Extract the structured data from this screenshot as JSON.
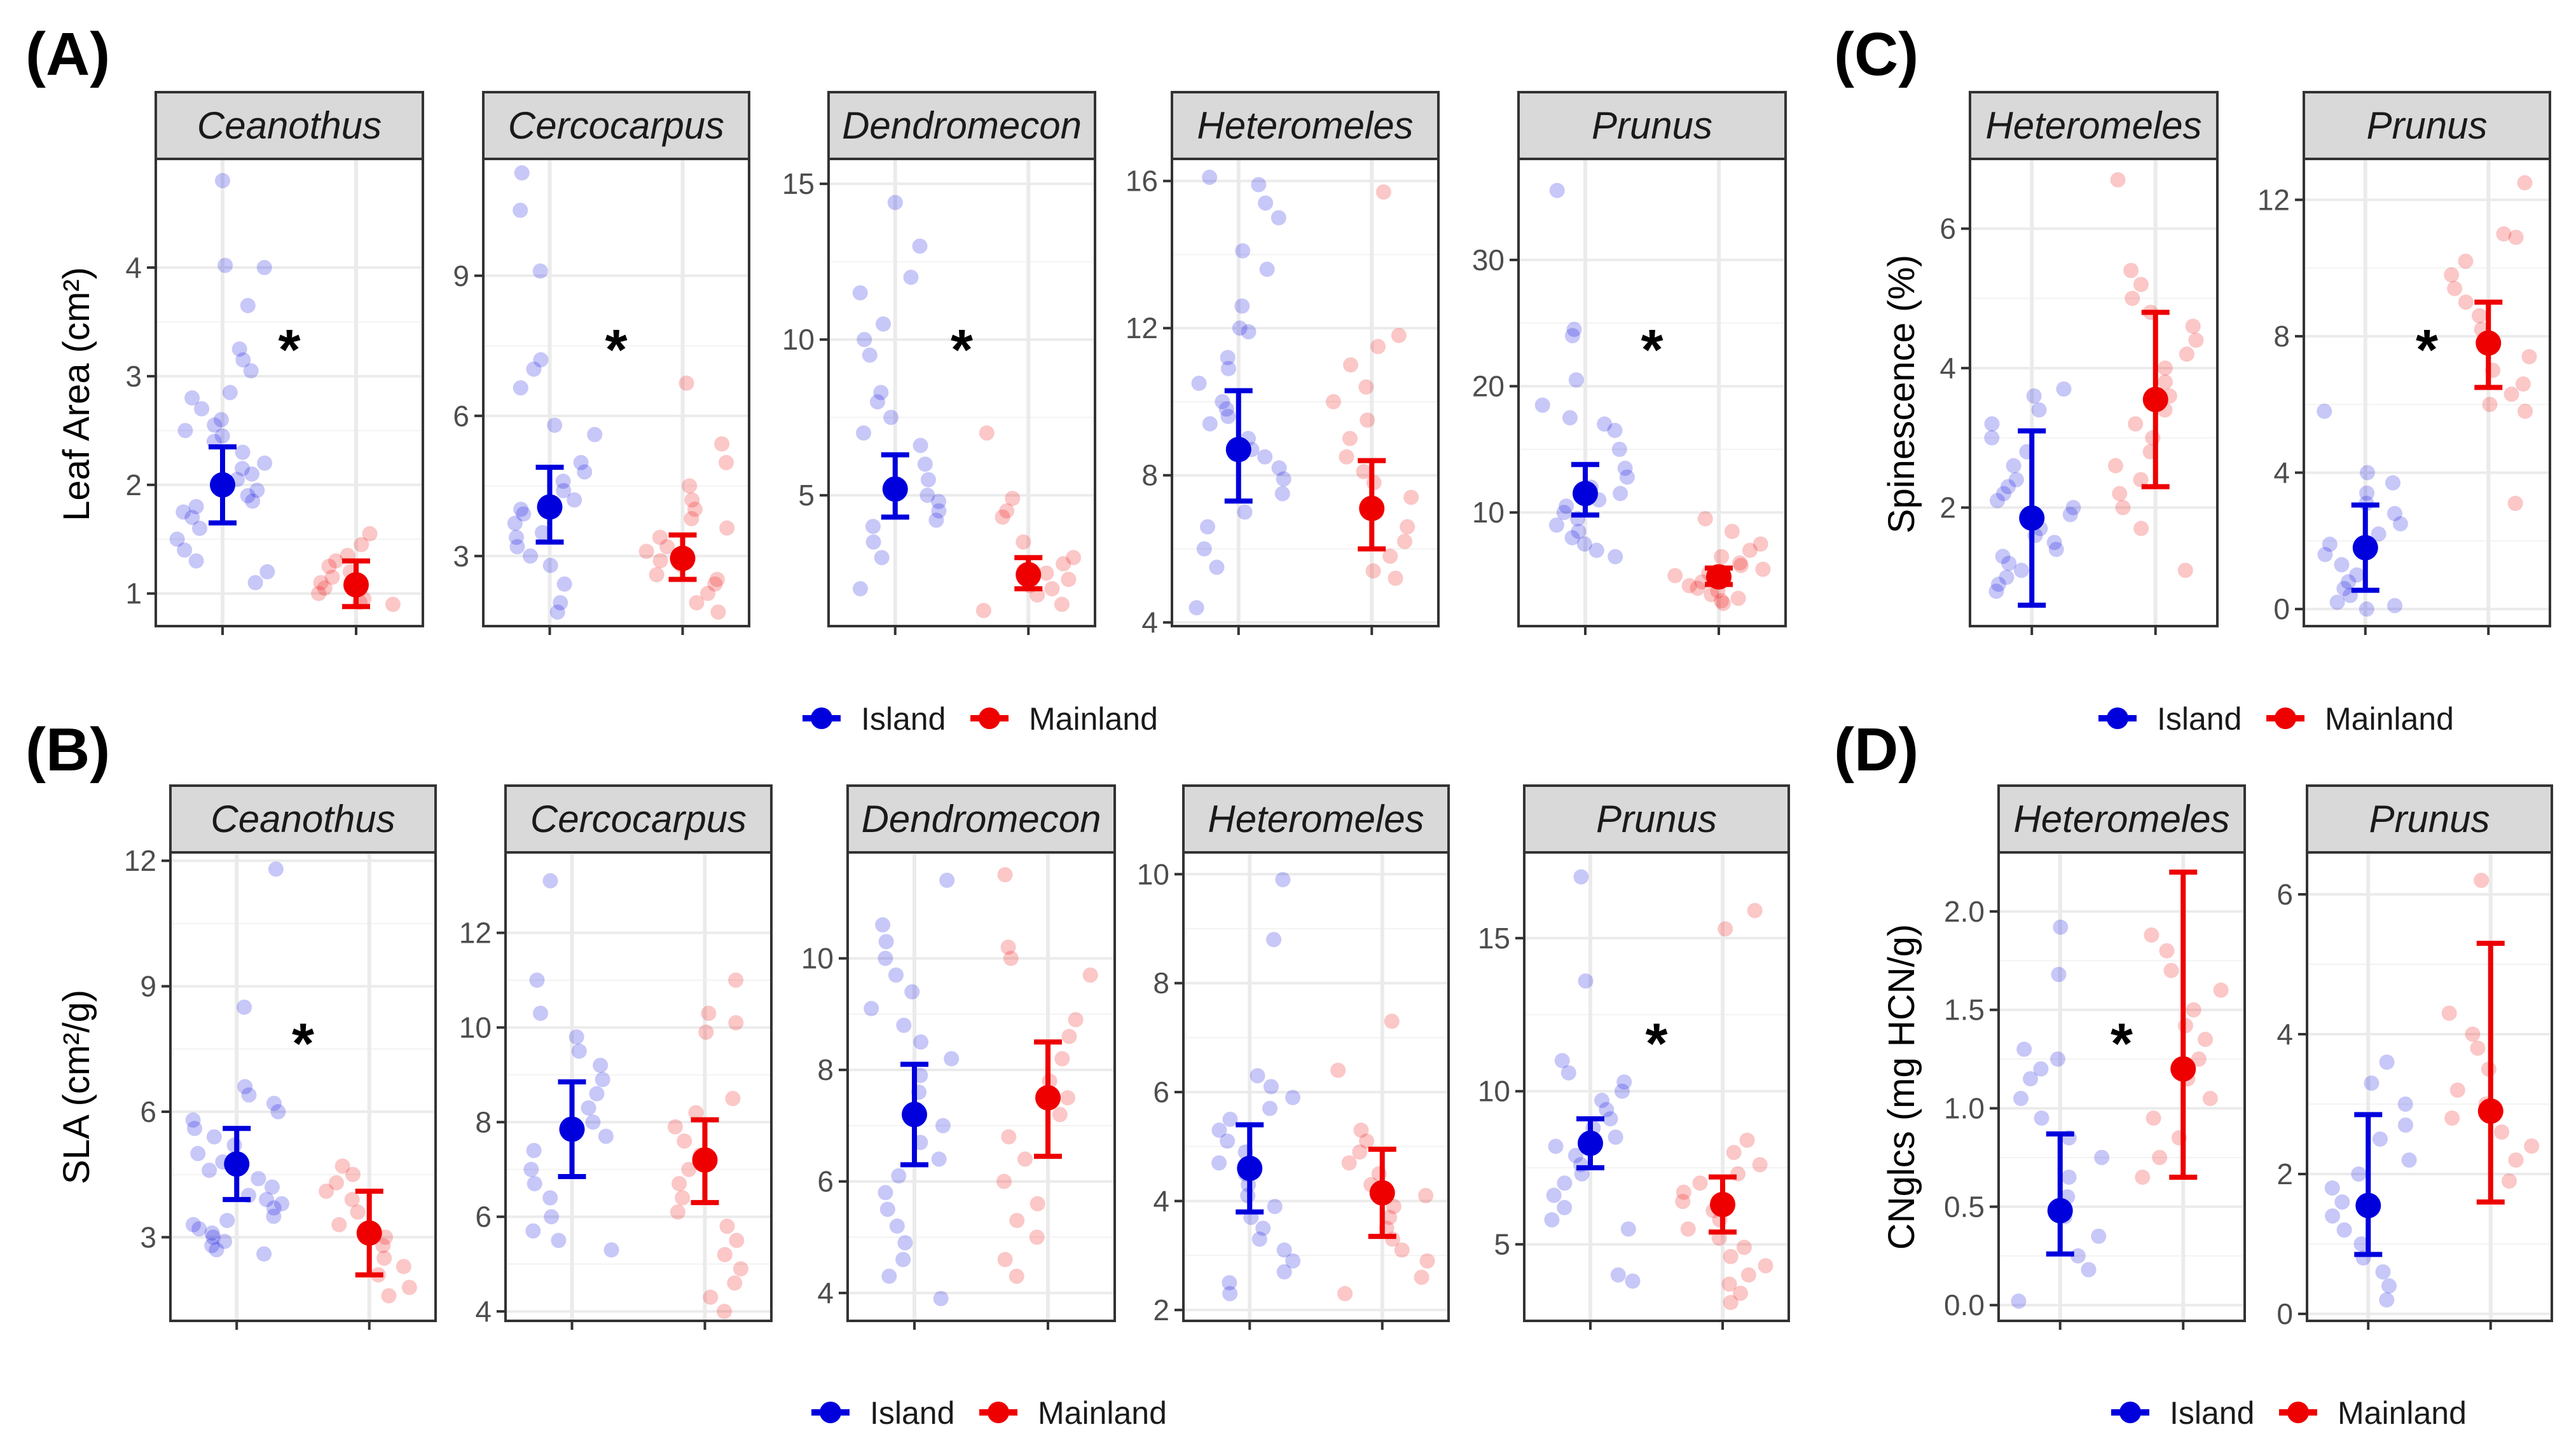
{
  "colors": {
    "island": "#0000dd",
    "mainland": "#ee0000",
    "strip_fill": "#d9d9d9",
    "grid": "#ebebeb"
  },
  "legend": {
    "island": "Island",
    "mainland": "Mainland"
  },
  "chart_data": [
    {
      "id": "A",
      "label": "(A)",
      "type": "scatter",
      "ylabel": "Leaf Area (cm²)",
      "facets": [
        {
          "name": "Ceanothus",
          "ylim": [
            0.7,
            5.0
          ],
          "ticks": [
            1,
            2,
            3,
            4
          ],
          "star": true,
          "island": {
            "mean": 2.0,
            "lo": 1.65,
            "hi": 2.35,
            "points": [
              4.8,
              4.0,
              4.02,
              3.65,
              3.25,
              3.15,
              3.05,
              2.85,
              2.8,
              2.7,
              2.6,
              2.55,
              2.5,
              2.45,
              2.4,
              2.3,
              2.2,
              2.15,
              2.1,
              2.05,
              1.95,
              1.9,
              1.85,
              1.8,
              1.75,
              1.7,
              1.6,
              1.5,
              1.4,
              1.3,
              1.2,
              1.1
            ]
          },
          "mainland": {
            "mean": 1.08,
            "lo": 0.88,
            "hi": 1.3,
            "points": [
              1.55,
              1.45,
              1.35,
              1.3,
              1.25,
              1.2,
              1.15,
              1.1,
              1.05,
              1.0,
              0.95,
              0.92,
              0.9
            ]
          }
        },
        {
          "name": "Cercocarpus",
          "ylim": [
            1.5,
            11.5
          ],
          "ticks": [
            3,
            6,
            9
          ],
          "star": true,
          "island": {
            "mean": 4.05,
            "lo": 3.3,
            "hi": 4.9,
            "points": [
              11.2,
              10.4,
              9.1,
              7.2,
              7.0,
              6.6,
              5.8,
              5.6,
              5.0,
              4.8,
              4.6,
              4.4,
              4.2,
              4.0,
              3.9,
              3.7,
              3.5,
              3.4,
              3.2,
              3.0,
              2.8,
              2.4,
              2.0,
              1.8
            ]
          },
          "mainland": {
            "mean": 2.95,
            "lo": 2.5,
            "hi": 3.45,
            "points": [
              6.7,
              5.4,
              5.0,
              4.5,
              4.2,
              4.0,
              3.8,
              3.6,
              3.4,
              3.2,
              3.1,
              3.0,
              2.9,
              2.8,
              2.6,
              2.5,
              2.4,
              2.2,
              2.0,
              1.8
            ]
          }
        },
        {
          "name": "Dendromecon",
          "ylim": [
            0.8,
            15.8
          ],
          "ticks": [
            5,
            10,
            15
          ],
          "star": true,
          "island": {
            "mean": 5.2,
            "lo": 4.3,
            "hi": 6.3,
            "points": [
              14.4,
              13.0,
              12.0,
              11.5,
              10.5,
              10.0,
              9.5,
              8.3,
              8.0,
              7.5,
              7.0,
              6.6,
              6.0,
              5.5,
              5.0,
              4.8,
              4.5,
              4.2,
              4.0,
              3.5,
              3.0,
              2.0
            ]
          },
          "mainland": {
            "mean": 2.45,
            "lo": 2.0,
            "hi": 3.0,
            "points": [
              7.0,
              4.9,
              4.5,
              4.3,
              3.5,
              3.0,
              2.8,
              2.5,
              2.3,
              2.1,
              2.0,
              1.8,
              1.5,
              1.3
            ]
          }
        },
        {
          "name": "Heteromeles",
          "ylim": [
            3.9,
            16.6
          ],
          "ticks": [
            4,
            8,
            12,
            16
          ],
          "star": false,
          "island": {
            "mean": 8.7,
            "lo": 7.3,
            "hi": 10.3,
            "points": [
              16.1,
              15.9,
              15.4,
              15.0,
              14.1,
              13.6,
              12.6,
              12.0,
              11.9,
              11.2,
              10.9,
              10.5,
              10.0,
              9.8,
              9.6,
              9.4,
              9.0,
              8.7,
              8.5,
              8.2,
              7.9,
              7.5,
              7.0,
              6.6,
              6.0,
              5.5,
              4.4
            ]
          },
          "mainland": {
            "mean": 7.1,
            "lo": 6.0,
            "hi": 8.4,
            "points": [
              15.7,
              11.8,
              11.5,
              11.0,
              10.4,
              10.0,
              9.5,
              9.0,
              8.5,
              8.1,
              7.8,
              7.4,
              7.0,
              6.6,
              6.2,
              5.8,
              5.4,
              5.2
            ]
          }
        },
        {
          "name": "Prunus",
          "ylim": [
            1.0,
            38.0
          ],
          "ticks": [
            10,
            20,
            30
          ],
          "star": true,
          "island": {
            "mean": 11.5,
            "lo": 9.8,
            "hi": 13.8,
            "points": [
              35.5,
              24.5,
              24.0,
              20.5,
              18.5,
              17.5,
              17.0,
              16.5,
              15.0,
              13.5,
              12.8,
              12.0,
              11.5,
              11.0,
              10.5,
              10.0,
              9.5,
              9.0,
              8.5,
              8.0,
              7.5,
              7.0,
              6.5
            ]
          },
          "mainland": {
            "mean": 4.9,
            "lo": 4.3,
            "hi": 5.6,
            "points": [
              9.5,
              8.5,
              7.5,
              7.0,
              6.5,
              6.0,
              5.8,
              5.5,
              5.2,
              5.0,
              4.8,
              4.5,
              4.2,
              4.0,
              3.8,
              3.5,
              3.2,
              3.0,
              2.8
            ]
          }
        }
      ]
    },
    {
      "id": "B",
      "label": "(B)",
      "type": "scatter",
      "ylabel": "SLA (cm²/g)",
      "facets": [
        {
          "name": "Ceanothus",
          "ylim": [
            1.0,
            12.2
          ],
          "ticks": [
            3,
            6,
            9,
            12
          ],
          "star": true,
          "island": {
            "mean": 4.75,
            "lo": 3.9,
            "hi": 5.6,
            "points": [
              11.8,
              8.5,
              6.6,
              6.4,
              6.2,
              6.0,
              5.8,
              5.6,
              5.4,
              5.2,
              5.0,
              4.8,
              4.6,
              4.4,
              4.2,
              4.0,
              3.9,
              3.8,
              3.7,
              3.5,
              3.4,
              3.3,
              3.2,
              3.1,
              3.0,
              2.9,
              2.8,
              2.7,
              2.6
            ]
          },
          "mainland": {
            "mean": 3.1,
            "lo": 2.1,
            "hi": 4.1,
            "points": [
              4.7,
              4.5,
              4.3,
              4.1,
              3.9,
              3.6,
              3.3,
              3.0,
              2.8,
              2.5,
              2.3,
              2.1,
              1.8,
              1.6
            ]
          }
        },
        {
          "name": "Cercocarpus",
          "ylim": [
            3.8,
            13.7
          ],
          "ticks": [
            4,
            6,
            8,
            10,
            12
          ],
          "star": false,
          "island": {
            "mean": 7.85,
            "lo": 6.85,
            "hi": 8.85,
            "points": [
              13.1,
              11.0,
              10.3,
              9.8,
              9.5,
              9.2,
              8.9,
              8.6,
              8.3,
              8.0,
              7.7,
              7.4,
              7.0,
              6.7,
              6.4,
              6.0,
              5.7,
              5.5,
              5.3
            ]
          },
          "mainland": {
            "mean": 7.2,
            "lo": 6.3,
            "hi": 8.05,
            "points": [
              11.0,
              10.3,
              10.1,
              9.9,
              8.5,
              8.2,
              7.9,
              7.6,
              7.3,
              7.0,
              6.7,
              6.4,
              6.1,
              5.8,
              5.5,
              5.2,
              4.9,
              4.6,
              4.3,
              4.0
            ]
          }
        },
        {
          "name": "Dendromecon",
          "ylim": [
            3.5,
            11.9
          ],
          "ticks": [
            4,
            6,
            8,
            10
          ],
          "star": false,
          "island": {
            "mean": 7.2,
            "lo": 6.3,
            "hi": 8.1,
            "points": [
              11.4,
              10.6,
              10.3,
              10.0,
              9.7,
              9.4,
              9.1,
              8.8,
              8.5,
              8.2,
              7.9,
              7.6,
              7.3,
              7.0,
              6.7,
              6.4,
              6.1,
              5.8,
              5.5,
              5.2,
              4.9,
              4.6,
              4.3,
              3.9
            ]
          },
          "mainland": {
            "mean": 7.5,
            "lo": 6.45,
            "hi": 8.5,
            "points": [
              11.5,
              10.2,
              10.0,
              9.7,
              8.9,
              8.6,
              8.2,
              7.8,
              7.5,
              7.2,
              6.8,
              6.4,
              6.0,
              5.6,
              5.3,
              5.0,
              4.6,
              4.3
            ]
          }
        },
        {
          "name": "Heteromeles",
          "ylim": [
            1.8,
            10.4
          ],
          "ticks": [
            2,
            4,
            6,
            8,
            10
          ],
          "star": false,
          "island": {
            "mean": 4.6,
            "lo": 3.8,
            "hi": 5.4,
            "points": [
              9.9,
              8.8,
              6.3,
              6.1,
              5.9,
              5.7,
              5.5,
              5.3,
              5.1,
              4.9,
              4.7,
              4.5,
              4.3,
              4.1,
              3.9,
              3.7,
              3.5,
              3.3,
              3.1,
              2.9,
              2.7,
              2.5,
              2.3
            ]
          },
          "mainland": {
            "mean": 4.15,
            "lo": 3.35,
            "hi": 4.95,
            "points": [
              7.3,
              6.4,
              5.3,
              5.1,
              4.9,
              4.7,
              4.5,
              4.3,
              4.1,
              3.9,
              3.7,
              3.5,
              3.3,
              3.1,
              2.9,
              2.6,
              2.3
            ]
          }
        },
        {
          "name": "Prunus",
          "ylim": [
            2.5,
            17.8
          ],
          "ticks": [
            5,
            10,
            15
          ],
          "star": true,
          "island": {
            "mean": 8.3,
            "lo": 7.5,
            "hi": 9.1,
            "points": [
              17.0,
              13.6,
              11.0,
              10.6,
              10.3,
              10.0,
              9.7,
              9.4,
              9.1,
              8.8,
              8.5,
              8.2,
              7.9,
              7.6,
              7.3,
              7.0,
              6.6,
              6.2,
              5.8,
              5.5,
              4.0,
              3.8
            ]
          },
          "mainland": {
            "mean": 6.3,
            "lo": 5.4,
            "hi": 7.2,
            "points": [
              15.9,
              15.3,
              8.4,
              8.0,
              7.6,
              7.3,
              7.0,
              6.7,
              6.4,
              6.1,
              5.8,
              5.5,
              5.2,
              4.9,
              4.6,
              4.3,
              4.0,
              3.7,
              3.4,
              3.1
            ]
          }
        }
      ]
    },
    {
      "id": "C",
      "label": "(C)",
      "type": "scatter",
      "ylabel": "Spinescence (%)",
      "facets": [
        {
          "name": "Heteromeles",
          "ylim": [
            0.3,
            7.0
          ],
          "ticks": [
            2,
            4,
            6
          ],
          "star": false,
          "island": {
            "mean": 1.85,
            "lo": 0.6,
            "hi": 3.1,
            "points": [
              3.7,
              3.6,
              3.4,
              3.2,
              3.0,
              2.8,
              2.6,
              2.4,
              2.3,
              2.2,
              2.1,
              2.0,
              1.9,
              1.8,
              1.7,
              1.6,
              1.5,
              1.4,
              1.3,
              1.2,
              1.1,
              1.0,
              0.9,
              0.8
            ]
          },
          "mainland": {
            "mean": 3.55,
            "lo": 2.3,
            "hi": 4.8,
            "points": [
              6.7,
              5.4,
              5.2,
              5.0,
              4.8,
              4.6,
              4.4,
              4.2,
              4.0,
              3.8,
              3.6,
              3.4,
              3.2,
              3.0,
              2.8,
              2.6,
              2.4,
              2.2,
              2.0,
              1.7,
              1.1
            ]
          }
        },
        {
          "name": "Prunus",
          "ylim": [
            -0.5,
            13.2
          ],
          "ticks": [
            0,
            4,
            8,
            12
          ],
          "star": true,
          "island": {
            "mean": 1.8,
            "lo": 0.55,
            "hi": 3.05,
            "points": [
              5.8,
              4.0,
              3.7,
              3.4,
              3.1,
              2.8,
              2.5,
              2.2,
              1.9,
              1.6,
              1.3,
              1.0,
              0.8,
              0.6,
              0.4,
              0.2,
              0.1,
              0.0
            ]
          },
          "mainland": {
            "mean": 7.8,
            "lo": 6.5,
            "hi": 9.0,
            "points": [
              12.5,
              11.0,
              10.9,
              10.2,
              9.8,
              9.4,
              9.0,
              8.6,
              8.2,
              7.8,
              7.4,
              7.0,
              6.6,
              6.3,
              6.0,
              5.8,
              3.1
            ]
          }
        }
      ]
    },
    {
      "id": "D",
      "label": "(D)",
      "type": "scatter",
      "ylabel": "CNglcs (mg HCN/g)",
      "facets": [
        {
          "name": "Heteromeles",
          "ylim": [
            -0.08,
            2.3
          ],
          "ticks": [
            0.0,
            0.5,
            1.0,
            1.5,
            2.0
          ],
          "tick_labels": [
            "0.0",
            "0.5",
            "1.0",
            "1.5",
            "2.0"
          ],
          "star": true,
          "island": {
            "mean": 0.48,
            "lo": 0.26,
            "hi": 0.87,
            "points": [
              1.92,
              1.68,
              1.3,
              1.25,
              1.2,
              1.15,
              1.05,
              0.95,
              0.85,
              0.75,
              0.65,
              0.55,
              0.45,
              0.35,
              0.25,
              0.18,
              0.02
            ]
          },
          "mainland": {
            "mean": 1.2,
            "lo": 0.65,
            "hi": 2.2,
            "points": [
              1.88,
              1.8,
              1.7,
              1.6,
              1.5,
              1.42,
              1.35,
              1.25,
              1.15,
              1.05,
              0.95,
              0.85,
              0.75,
              0.65
            ]
          }
        },
        {
          "name": "Prunus",
          "ylim": [
            -0.1,
            6.6
          ],
          "ticks": [
            0,
            2,
            4,
            6
          ],
          "star": false,
          "island": {
            "mean": 1.55,
            "lo": 0.85,
            "hi": 2.85,
            "points": [
              3.6,
              3.3,
              3.0,
              2.7,
              2.5,
              2.2,
              2.0,
              1.8,
              1.6,
              1.4,
              1.2,
              1.0,
              0.8,
              0.6,
              0.4,
              0.2
            ]
          },
          "mainland": {
            "mean": 2.9,
            "lo": 1.6,
            "hi": 5.3,
            "points": [
              6.2,
              4.3,
              4.0,
              3.8,
              3.5,
              3.2,
              3.0,
              2.8,
              2.6,
              2.4,
              2.2,
              1.9
            ]
          }
        }
      ]
    }
  ]
}
